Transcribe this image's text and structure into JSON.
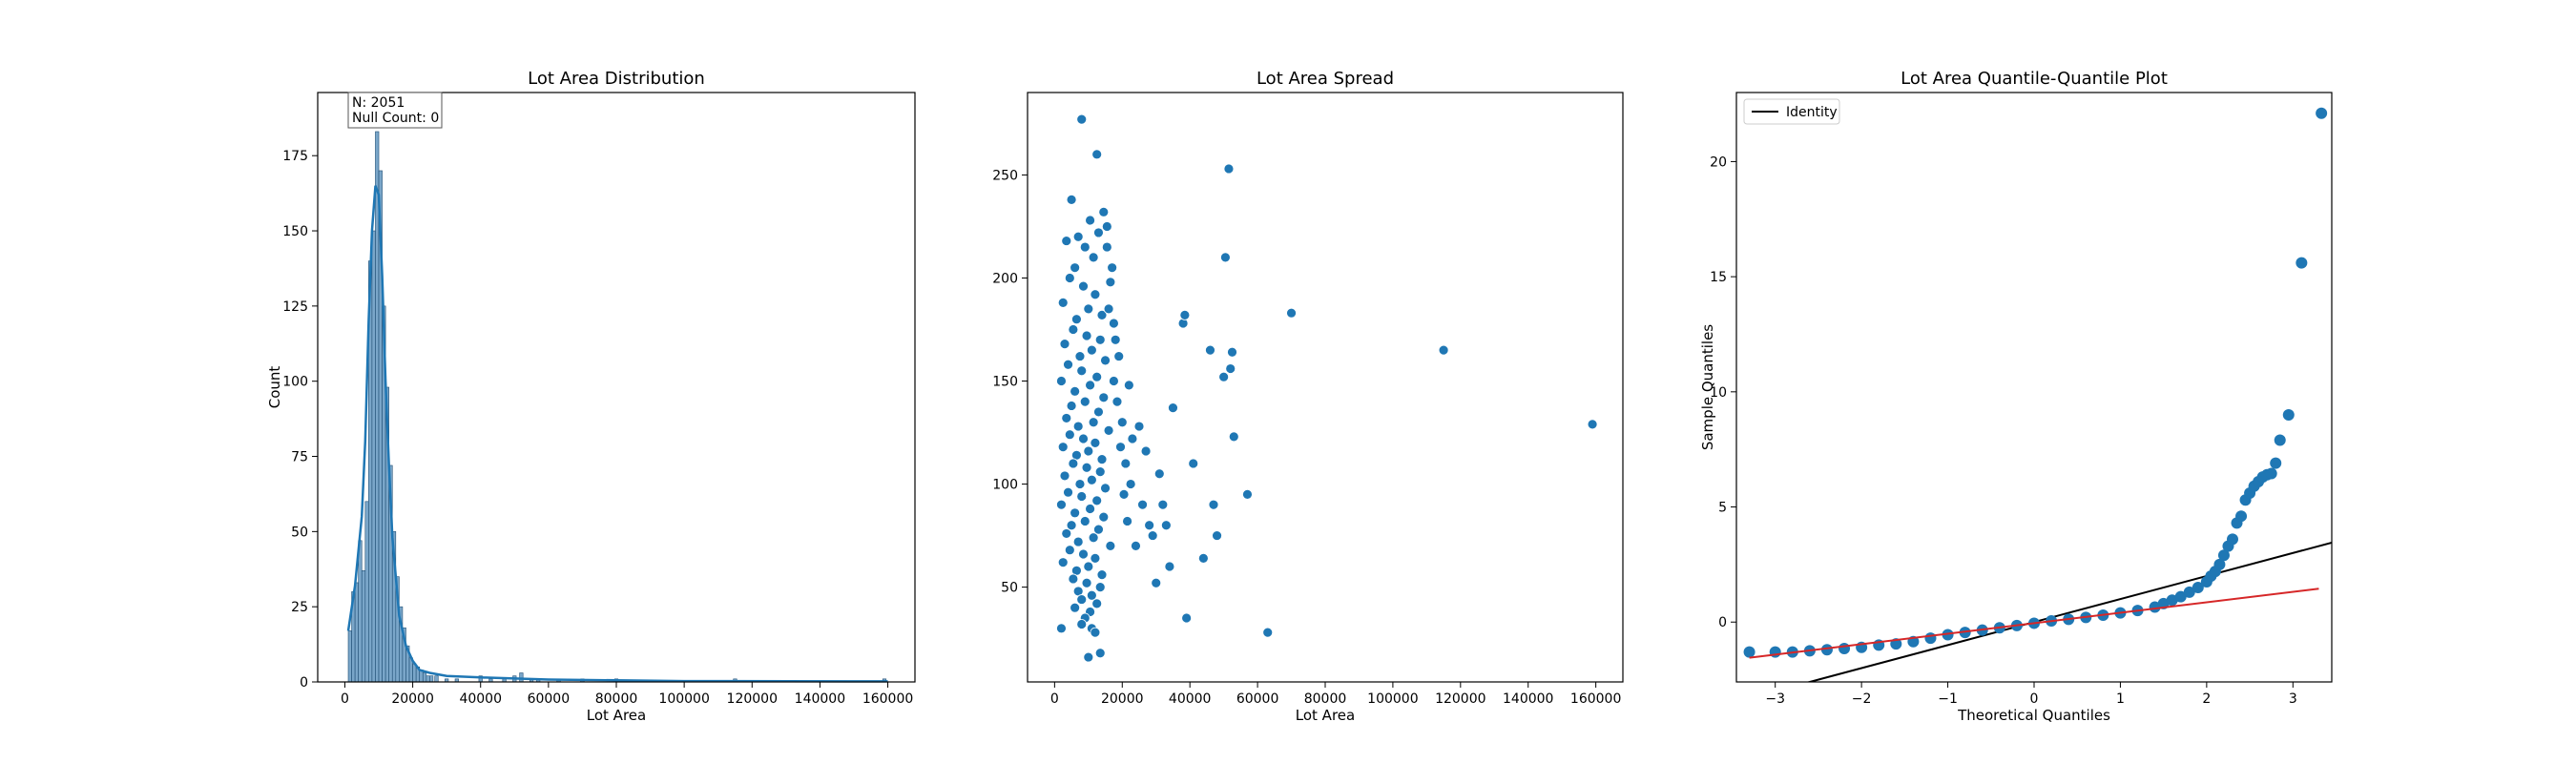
{
  "chart_data": [
    {
      "type": "histogram",
      "title": "Lot Area Distribution",
      "xlabel": "Lot Area",
      "ylabel": "Count",
      "xlim": [
        -8000,
        168000
      ],
      "ylim": [
        0,
        196
      ],
      "xticks": [
        0,
        20000,
        40000,
        60000,
        80000,
        100000,
        120000,
        140000,
        160000
      ],
      "yticks": [
        0,
        25,
        50,
        75,
        100,
        125,
        150,
        175
      ],
      "annotation": {
        "line1": "N: 2051",
        "line2": "Null Count: 0"
      },
      "bins": {
        "x": [
          1500,
          2500,
          3500,
          4500,
          5500,
          6500,
          7500,
          8500,
          9500,
          10500,
          11500,
          12500,
          13500,
          14500,
          15500,
          16500,
          17500,
          18500,
          19500,
          20500,
          21500,
          22500,
          23500,
          24500,
          25500,
          27000,
          30000,
          33000,
          40000,
          43000,
          47000,
          50000,
          52000,
          55000,
          57000,
          63000,
          70000,
          80000,
          115000,
          159000
        ],
        "counts": [
          17,
          30,
          33,
          47,
          37,
          60,
          140,
          150,
          183,
          170,
          125,
          98,
          72,
          50,
          35,
          25,
          18,
          12,
          8,
          6,
          5,
          4,
          3,
          2,
          2,
          2,
          1,
          1,
          2,
          1,
          1,
          2,
          3,
          1,
          1,
          1,
          1,
          1,
          1,
          1
        ]
      },
      "kde": {
        "x": [
          1000,
          3000,
          5000,
          6000,
          7000,
          8000,
          9000,
          10000,
          11000,
          12000,
          13000,
          14000,
          16000,
          18000,
          20000,
          22000,
          25000,
          30000,
          40000,
          60000,
          100000,
          160000
        ],
        "y": [
          17,
          32,
          55,
          80,
          120,
          150,
          165,
          162,
          135,
          100,
          72,
          48,
          22,
          12,
          7,
          4,
          3,
          2,
          1.5,
          0.8,
          0.3,
          0.2
        ]
      }
    },
    {
      "type": "scatter",
      "title": "Lot Area Spread",
      "xlabel": "Lot Area",
      "ylabel": "",
      "xlim": [
        -8000,
        168000
      ],
      "ylim": [
        4,
        290
      ],
      "xticks": [
        0,
        20000,
        40000,
        60000,
        80000,
        100000,
        120000,
        140000,
        160000
      ],
      "yticks": [
        50,
        100,
        150,
        200,
        250
      ],
      "points": [
        [
          8000,
          277
        ],
        [
          12500,
          260
        ],
        [
          5000,
          238
        ],
        [
          14500,
          232
        ],
        [
          10500,
          228
        ],
        [
          13000,
          222
        ],
        [
          7000,
          220
        ],
        [
          15500,
          225
        ],
        [
          3500,
          218
        ],
        [
          9000,
          215
        ],
        [
          11500,
          210
        ],
        [
          6000,
          205
        ],
        [
          4500,
          200
        ],
        [
          16500,
          198
        ],
        [
          8500,
          196
        ],
        [
          12000,
          192
        ],
        [
          2500,
          188
        ],
        [
          10000,
          185
        ],
        [
          14000,
          182
        ],
        [
          6500,
          180
        ],
        [
          17500,
          178
        ],
        [
          5500,
          175
        ],
        [
          9500,
          172
        ],
        [
          13500,
          170
        ],
        [
          3000,
          168
        ],
        [
          11000,
          165
        ],
        [
          7500,
          162
        ],
        [
          15000,
          160
        ],
        [
          4000,
          158
        ],
        [
          8000,
          155
        ],
        [
          12500,
          152
        ],
        [
          2000,
          150
        ],
        [
          10500,
          148
        ],
        [
          6000,
          145
        ],
        [
          14500,
          142
        ],
        [
          9000,
          140
        ],
        [
          5000,
          138
        ],
        [
          13000,
          135
        ],
        [
          3500,
          132
        ],
        [
          11500,
          130
        ],
        [
          7000,
          128
        ],
        [
          16000,
          126
        ],
        [
          4500,
          124
        ],
        [
          8500,
          122
        ],
        [
          12000,
          120
        ],
        [
          2500,
          118
        ],
        [
          10000,
          116
        ],
        [
          6500,
          114
        ],
        [
          14000,
          112
        ],
        [
          5500,
          110
        ],
        [
          9500,
          108
        ],
        [
          13500,
          106
        ],
        [
          3000,
          104
        ],
        [
          11000,
          102
        ],
        [
          7500,
          100
        ],
        [
          15000,
          98
        ],
        [
          4000,
          96
        ],
        [
          8000,
          94
        ],
        [
          12500,
          92
        ],
        [
          2000,
          90
        ],
        [
          10500,
          88
        ],
        [
          6000,
          86
        ],
        [
          14500,
          84
        ],
        [
          9000,
          82
        ],
        [
          5000,
          80
        ],
        [
          13000,
          78
        ],
        [
          3500,
          76
        ],
        [
          11500,
          74
        ],
        [
          7000,
          72
        ],
        [
          16500,
          70
        ],
        [
          4500,
          68
        ],
        [
          8500,
          66
        ],
        [
          12000,
          64
        ],
        [
          2500,
          62
        ],
        [
          10000,
          60
        ],
        [
          6500,
          58
        ],
        [
          14000,
          56
        ],
        [
          5500,
          54
        ],
        [
          9500,
          52
        ],
        [
          13500,
          50
        ],
        [
          7000,
          48
        ],
        [
          11000,
          46
        ],
        [
          8000,
          44
        ],
        [
          12500,
          42
        ],
        [
          6000,
          40
        ],
        [
          10500,
          38
        ],
        [
          9000,
          35
        ],
        [
          11000,
          30
        ],
        [
          8000,
          32
        ],
        [
          12000,
          28
        ],
        [
          2000,
          30
        ],
        [
          10000,
          16
        ],
        [
          13500,
          18
        ],
        [
          15500,
          215
        ],
        [
          17000,
          205
        ],
        [
          16000,
          185
        ],
        [
          18000,
          170
        ],
        [
          17500,
          150
        ],
        [
          19000,
          162
        ],
        [
          18500,
          140
        ],
        [
          20000,
          130
        ],
        [
          19500,
          118
        ],
        [
          21000,
          110
        ],
        [
          20500,
          95
        ],
        [
          22000,
          148
        ],
        [
          21500,
          82
        ],
        [
          23000,
          122
        ],
        [
          22500,
          100
        ],
        [
          24000,
          70
        ],
        [
          25000,
          128
        ],
        [
          26000,
          90
        ],
        [
          27000,
          116
        ],
        [
          28000,
          80
        ],
        [
          29000,
          75
        ],
        [
          30000,
          52
        ],
        [
          31000,
          105
        ],
        [
          32000,
          90
        ],
        [
          33000,
          80
        ],
        [
          34000,
          60
        ],
        [
          35000,
          137
        ],
        [
          38000,
          178
        ],
        [
          38500,
          182
        ],
        [
          39000,
          35
        ],
        [
          41000,
          110
        ],
        [
          44000,
          64
        ],
        [
          46000,
          165
        ],
        [
          47000,
          90
        ],
        [
          48000,
          75
        ],
        [
          50000,
          152
        ],
        [
          50500,
          210
        ],
        [
          51500,
          253
        ],
        [
          52000,
          156
        ],
        [
          52500,
          164
        ],
        [
          53000,
          123
        ],
        [
          57000,
          95
        ],
        [
          63000,
          28
        ],
        [
          70000,
          183
        ],
        [
          115000,
          165
        ],
        [
          159000,
          129
        ]
      ]
    },
    {
      "type": "scatter",
      "title": "Lot Area Quantile-Quantile Plot",
      "xlabel": "Theoretical Quantiles",
      "ylabel": "Sample Quantiles",
      "xlim": [
        -3.45,
        3.45
      ],
      "ylim": [
        -2.6,
        23.0
      ],
      "xticks": [
        -3,
        -2,
        -1,
        0,
        1,
        2,
        3
      ],
      "yticks": [
        0,
        5,
        10,
        15,
        20
      ],
      "legend": {
        "label": "Identity",
        "position": "upper-left"
      },
      "identity_line": {
        "x": [
          -3.45,
          3.45
        ],
        "y": [
          -3.45,
          3.45
        ],
        "color": "#000000"
      },
      "fit_line": {
        "x": [
          -3.3,
          3.3
        ],
        "y": [
          -1.55,
          1.45
        ],
        "color": "#d62728"
      },
      "points": [
        [
          -3.3,
          -1.3
        ],
        [
          -3.0,
          -1.3
        ],
        [
          -2.8,
          -1.3
        ],
        [
          -2.6,
          -1.25
        ],
        [
          -2.4,
          -1.2
        ],
        [
          -2.2,
          -1.15
        ],
        [
          -2.0,
          -1.1
        ],
        [
          -1.8,
          -1.0
        ],
        [
          -1.6,
          -0.95
        ],
        [
          -1.4,
          -0.85
        ],
        [
          -1.2,
          -0.7
        ],
        [
          -1.0,
          -0.55
        ],
        [
          -0.8,
          -0.45
        ],
        [
          -0.6,
          -0.35
        ],
        [
          -0.4,
          -0.25
        ],
        [
          -0.2,
          -0.15
        ],
        [
          0.0,
          -0.05
        ],
        [
          0.2,
          0.05
        ],
        [
          0.4,
          0.12
        ],
        [
          0.6,
          0.2
        ],
        [
          0.8,
          0.3
        ],
        [
          1.0,
          0.4
        ],
        [
          1.2,
          0.5
        ],
        [
          1.4,
          0.65
        ],
        [
          1.5,
          0.8
        ],
        [
          1.6,
          0.95
        ],
        [
          1.7,
          1.1
        ],
        [
          1.8,
          1.3
        ],
        [
          1.9,
          1.5
        ],
        [
          2.0,
          1.75
        ],
        [
          2.05,
          2.0
        ],
        [
          2.1,
          2.2
        ],
        [
          2.15,
          2.5
        ],
        [
          2.2,
          2.9
        ],
        [
          2.25,
          3.3
        ],
        [
          2.3,
          3.6
        ],
        [
          2.35,
          4.3
        ],
        [
          2.4,
          4.6
        ],
        [
          2.45,
          5.3
        ],
        [
          2.5,
          5.6
        ],
        [
          2.55,
          5.9
        ],
        [
          2.6,
          6.1
        ],
        [
          2.65,
          6.3
        ],
        [
          2.7,
          6.4
        ],
        [
          2.75,
          6.45
        ],
        [
          2.8,
          6.9
        ],
        [
          2.85,
          7.9
        ],
        [
          2.95,
          9.0
        ],
        [
          3.1,
          15.6
        ],
        [
          3.33,
          22.1
        ]
      ]
    }
  ]
}
